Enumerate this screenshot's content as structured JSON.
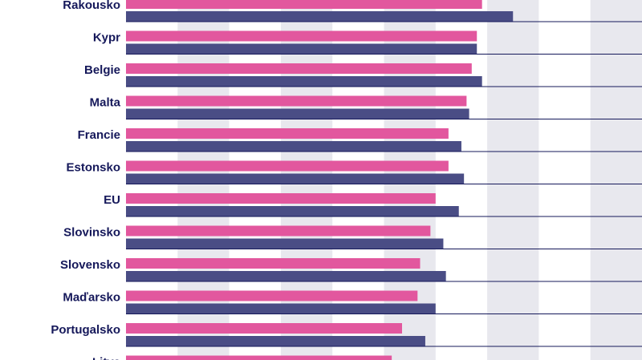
{
  "chart_data": {
    "type": "bar",
    "orientation": "horizontal",
    "categories": [
      "Rakousko",
      "Kypr",
      "Belgie",
      "Malta",
      "Francie",
      "Estonsko",
      "EU",
      "Slovinsko",
      "Slovensko",
      "Maďarsko",
      "Portugalsko",
      "Litva"
    ],
    "series": [
      {
        "values": [
          69,
          68,
          67,
          66,
          62.5,
          62.5,
          60,
          59,
          57,
          56.5,
          53.5,
          51.5
        ]
      },
      {
        "values": [
          75,
          68,
          69,
          66.5,
          65,
          65.5,
          64.5,
          61.5,
          62,
          60,
          58,
          null
        ]
      }
    ],
    "xlim": [
      0,
      100
    ],
    "grid": true,
    "colors": {
      "series": [
        "#e2579e",
        "#4a4d85"
      ],
      "label": "#15185a",
      "grid_band": "#e8e8ee",
      "separator": "#15185a"
    }
  }
}
